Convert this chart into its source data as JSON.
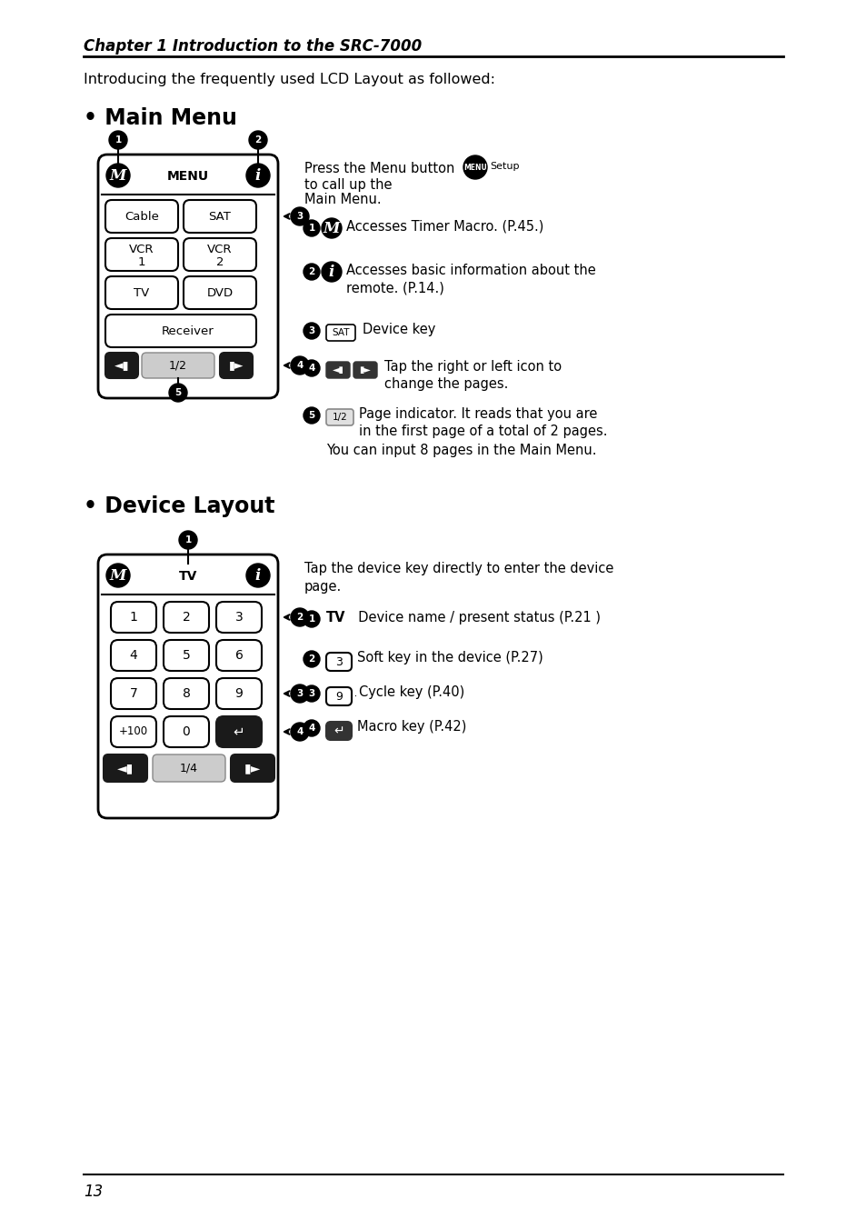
{
  "bg_color": "#ffffff",
  "chapter_title": "Chapter 1 Introduction to the SRC-7000",
  "intro_text": "Introducing the frequently used LCD Layout as followed:",
  "section1_title": "• Main Menu",
  "section2_title": "• Device Layout",
  "page_number": "13"
}
